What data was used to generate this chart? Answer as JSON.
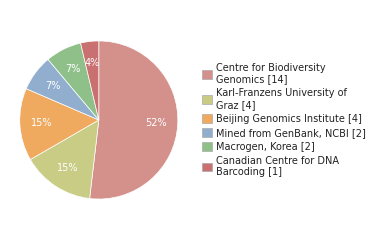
{
  "labels": [
    "Centre for Biodiversity\nGenomics [14]",
    "Karl-Franzens University of\nGraz [4]",
    "Beijing Genomics Institute [4]",
    "Mined from GenBank, NCBI [2]",
    "Macrogen, Korea [2]",
    "Canadian Centre for DNA\nBarcoding [1]"
  ],
  "values": [
    14,
    4,
    4,
    2,
    2,
    1
  ],
  "colors": [
    "#d4908a",
    "#c8cc85",
    "#f0aa60",
    "#92aecf",
    "#8fc08a",
    "#c97070"
  ],
  "startangle": 90,
  "background_color": "#ffffff",
  "text_color": "#222222",
  "fontsize": 7.0
}
